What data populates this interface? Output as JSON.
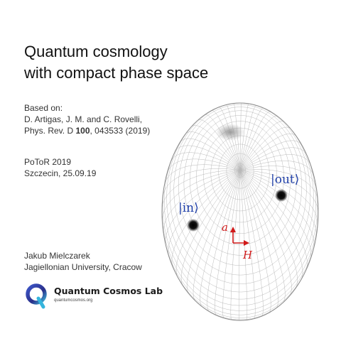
{
  "slide": {
    "title_line1": "Quantum cosmology",
    "title_line2": "with compact phase space",
    "based_on": "Based on:",
    "ref_authors": "D. Artigas, J. M. and C. Rovelli,",
    "ref_journal_prefix": "Phys. Rev. D ",
    "ref_volume": "100",
    "ref_pages_year": ", 043533 (2019)",
    "conference": "PoToR 2019",
    "place_date": "Szczecin, 25.09.19",
    "author_name": "Jakub Mielczarek",
    "affiliation": "Jagiellonian University, Cracow"
  },
  "logo": {
    "name": "Quantum Cosmos Lab",
    "url": "quantumcosmos.org",
    "icon": "q-logo-icon"
  },
  "figure": {
    "label_in": "|in⟩",
    "label_out": "|out⟩",
    "axis_vertical_label": "a",
    "axis_horizontal_label": "H",
    "axis_color": "#d11a1a",
    "label_color": "#1f3fa8"
  }
}
